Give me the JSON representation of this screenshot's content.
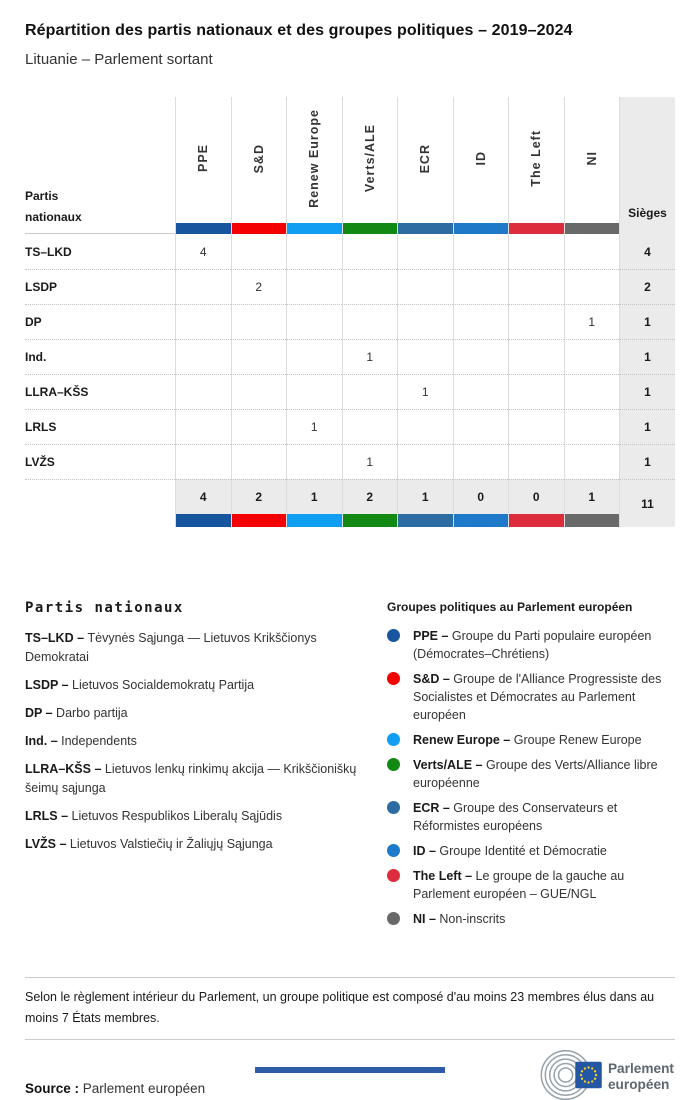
{
  "title": "Répartition des partis nationaux et des groupes politiques – 2019–2024",
  "subtitle": "Lituanie – Parlement sortant",
  "legend_separator": " – ",
  "chart_data": {
    "type": "table",
    "title": "Répartition des partis nationaux et des groupes politiques – 2019–2024",
    "subtitle": "Lituanie – Parlement sortant",
    "row_header": "Partis nationaux",
    "seats_header": "Sièges",
    "groups": [
      {
        "name": "PPE",
        "color": "#17569e"
      },
      {
        "name": "S&D",
        "color": "#f40000"
      },
      {
        "name": "Renew Europe",
        "color": "#0f9ef2"
      },
      {
        "name": "Verts/ALE",
        "color": "#128912"
      },
      {
        "name": "ECR",
        "color": "#2d6ca3"
      },
      {
        "name": "ID",
        "color": "#1e7ac8"
      },
      {
        "name": "The Left",
        "color": "#dd2c3c"
      },
      {
        "name": "NI",
        "color": "#696969"
      }
    ],
    "rows": [
      {
        "party": "TS–LKD",
        "values": [
          4,
          null,
          null,
          null,
          null,
          null,
          null,
          null
        ],
        "seats": 4
      },
      {
        "party": "LSDP",
        "values": [
          null,
          2,
          null,
          null,
          null,
          null,
          null,
          null
        ],
        "seats": 2
      },
      {
        "party": "DP",
        "values": [
          null,
          null,
          null,
          null,
          null,
          null,
          null,
          1
        ],
        "seats": 1
      },
      {
        "party": "Ind.",
        "values": [
          null,
          null,
          null,
          1,
          null,
          null,
          null,
          null
        ],
        "seats": 1
      },
      {
        "party": "LLRA–KŠS",
        "values": [
          null,
          null,
          null,
          null,
          1,
          null,
          null,
          null
        ],
        "seats": 1
      },
      {
        "party": "LRLS",
        "values": [
          null,
          null,
          1,
          null,
          null,
          null,
          null,
          null
        ],
        "seats": 1
      },
      {
        "party": "LVŽS",
        "values": [
          null,
          null,
          null,
          1,
          null,
          null,
          null,
          null
        ],
        "seats": 1
      }
    ],
    "totals": {
      "values": [
        4,
        2,
        1,
        2,
        1,
        0,
        0,
        1
      ],
      "seats": 11
    }
  },
  "legend_parties": {
    "title": "Partis nationaux",
    "items": [
      {
        "abbr": "TS–LKD",
        "name": "Tėvynės Sąjunga — Lietuvos Krikščionys Demokratai"
      },
      {
        "abbr": "LSDP",
        "name": "Lietuvos Socialdemokratų Partija"
      },
      {
        "abbr": "DP",
        "name": "Darbo partija"
      },
      {
        "abbr": "Ind.",
        "name": "Independents"
      },
      {
        "abbr": "LLRA–KŠS",
        "name": "Lietuvos lenkų rinkimų akcija — Krikščioniškų šeimų sąjunga"
      },
      {
        "abbr": "LRLS",
        "name": "Lietuvos Respublikos Liberalų Sąjūdis"
      },
      {
        "abbr": "LVŽS",
        "name": "Lietuvos Valstiečių ir Žaliųjų Sąjunga"
      }
    ]
  },
  "legend_groups": {
    "title": "Groupes politiques au Parlement européen",
    "items": [
      {
        "abbr": "PPE",
        "name": "Groupe du Parti populaire européen (Démocrates–Chrétiens)",
        "color": "#17569e"
      },
      {
        "abbr": "S&D",
        "name": "Groupe de l'Alliance Progressiste des Socialistes et Démocrates au Parlement européen",
        "color": "#f40000"
      },
      {
        "abbr": "Renew Europe",
        "name": "Groupe Renew Europe",
        "color": "#0f9ef2"
      },
      {
        "abbr": "Verts/ALE",
        "name": "Groupe des Verts/Alliance libre européenne",
        "color": "#128912"
      },
      {
        "abbr": "ECR",
        "name": "Groupe des Conservateurs et Réformistes européens",
        "color": "#2d6ca3"
      },
      {
        "abbr": "ID",
        "name": "Groupe Identité et Démocratie",
        "color": "#1e7ac8"
      },
      {
        "abbr": "The Left",
        "name": "Le groupe de la gauche au Parlement européen – GUE/NGL",
        "color": "#dd2c3c"
      },
      {
        "abbr": "NI",
        "name": "Non-inscrits",
        "color": "#696969"
      }
    ]
  },
  "footnote": "Selon le règlement intérieur du Parlement, un groupe politique est composé d'au moins 23 membres élus dans au moins 7 États membres.",
  "source": {
    "label": "Source :",
    "value": "Parlement européen"
  },
  "logo": {
    "line1": "Parlement",
    "line2": "européen"
  }
}
